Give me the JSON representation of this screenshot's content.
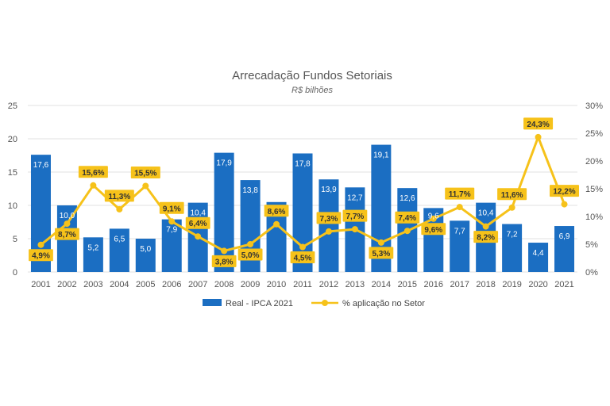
{
  "chart_data": {
    "type": "bar",
    "title": "Arrecadação Fundos Setoriais",
    "subtitle": "R$ bilhões",
    "categories": [
      "2001",
      "2002",
      "2003",
      "2004",
      "2005",
      "2006",
      "2007",
      "2008",
      "2009",
      "2010",
      "2011",
      "2012",
      "2013",
      "2014",
      "2015",
      "2016",
      "2017",
      "2018",
      "2019",
      "2020",
      "2021"
    ],
    "series": [
      {
        "name": "Real - IPCA 2021",
        "type": "bar",
        "axis": "left",
        "color": "#1b6ec2",
        "values": [
          17.6,
          10.0,
          5.2,
          6.5,
          5.0,
          7.9,
          10.4,
          17.9,
          13.8,
          10.5,
          17.8,
          13.9,
          12.7,
          19.1,
          12.6,
          9.6,
          7.7,
          10.4,
          7.2,
          4.4,
          6.9
        ],
        "labels": [
          "17,6",
          "10,0",
          "5,2",
          "6,5",
          "5,0",
          "7,9",
          "10,4",
          "17,9",
          "13,8",
          "",
          "17,8",
          "13,9",
          "12,7",
          "19,1",
          "12,6",
          "9,6",
          "7,7",
          "10,4",
          "7,2",
          "4,4",
          "6,9"
        ]
      },
      {
        "name": "% aplicação no Setor",
        "type": "line",
        "axis": "right",
        "color": "#f6c21a",
        "values": [
          4.9,
          8.7,
          15.6,
          11.3,
          15.5,
          9.1,
          6.4,
          3.8,
          5.0,
          8.6,
          4.5,
          7.3,
          7.7,
          5.3,
          7.4,
          9.6,
          11.7,
          8.2,
          11.6,
          24.3,
          12.2
        ],
        "labels": [
          "4,9%",
          "8,7%",
          "15,6%",
          "11,3%",
          "15,5%",
          "9,1%",
          "6,4%",
          "3,8%",
          "5,0%",
          "8,6%",
          "4,5%",
          "7,3%",
          "7,7%",
          "5,3%",
          "7,4%",
          "9,6%",
          "11,7%",
          "8,2%",
          "11,6%",
          "24,3%",
          "12,2%"
        ]
      }
    ],
    "y_left": {
      "ylim": [
        0,
        25
      ],
      "ticks": [
        "0",
        "5",
        "10",
        "15",
        "20",
        "25"
      ]
    },
    "y_right": {
      "ylim": [
        0,
        30
      ],
      "ticks": [
        "0%",
        "5%",
        "10%",
        "15%",
        "20%",
        "25%",
        "30%"
      ]
    },
    "legend": [
      "Real - IPCA 2021",
      "% aplicação no Setor"
    ],
    "legend_position": "bottom",
    "grid": true
  }
}
